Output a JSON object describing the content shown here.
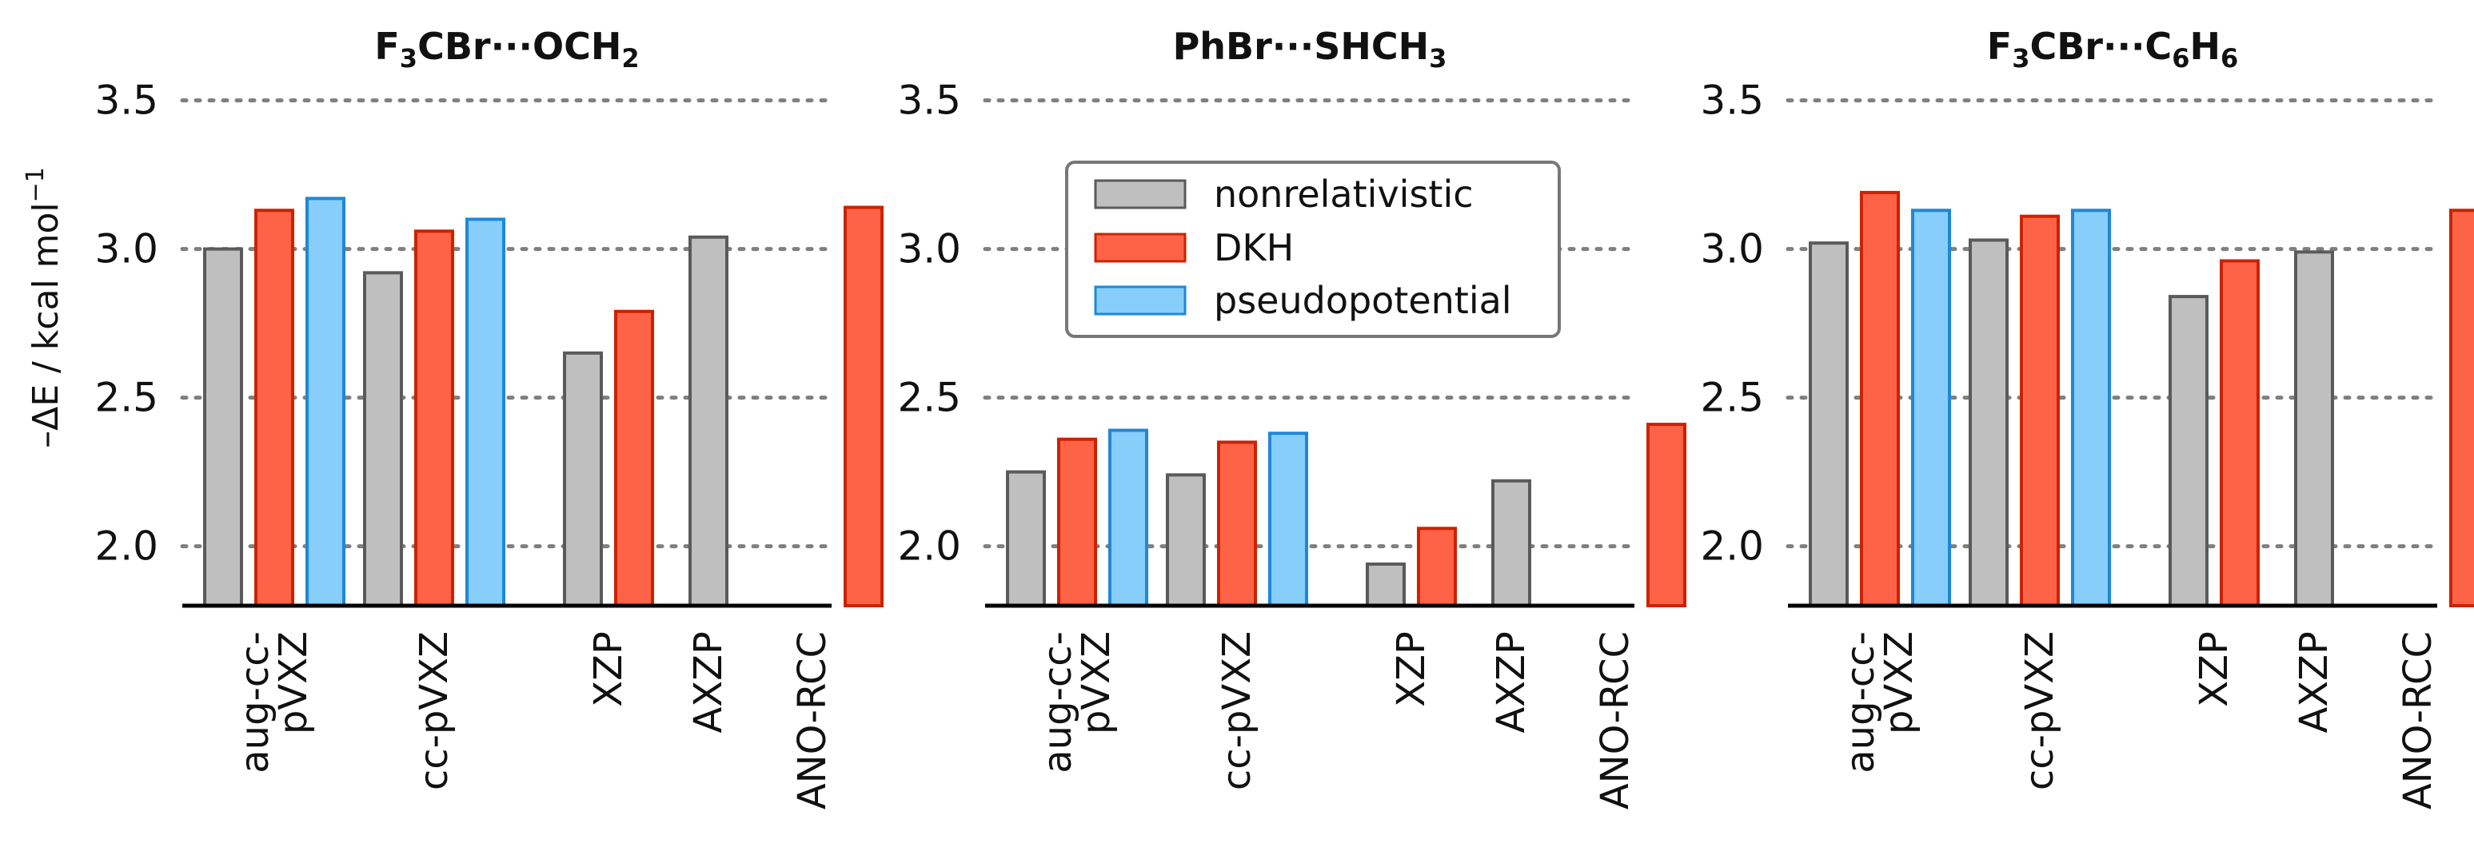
{
  "chart_data": {
    "type": "bar",
    "ylabel_main": "–ΔE / kcal mol",
    "ylabel_sup": "−1",
    "ylim": [
      1.8,
      3.5
    ],
    "yticks": [
      "2.0",
      "2.5",
      "3.0",
      "3.5"
    ],
    "ytick_values": [
      2.0,
      2.5,
      3.0,
      3.5
    ],
    "legend": {
      "position": "inside middle panel, upper area",
      "entries": [
        {
          "key": "nonrel",
          "label": "nonrelativistic"
        },
        {
          "key": "dkh",
          "label": "DKH"
        },
        {
          "key": "pp",
          "label": "pseudopotential"
        }
      ]
    },
    "colors": {
      "nonrel_fill": "#bfbfbf",
      "nonrel_edge": "#5a5a5a",
      "dkh_fill": "#ff6347",
      "dkh_edge": "#cc2200",
      "pp_fill": "#87cefa",
      "pp_edge": "#1e88d8",
      "grid": "#7f7f7f",
      "axis": "#000000"
    },
    "categories": [
      {
        "lines": [
          "aug-cc-",
          "pVXZ"
        ]
      },
      {
        "lines": [
          "cc-pVXZ"
        ]
      },
      {
        "lines": [
          "XZP"
        ]
      },
      {
        "lines": [
          "AXZP"
        ]
      },
      {
        "lines": [
          "ANO-RCC"
        ]
      }
    ],
    "panels": [
      {
        "title": {
          "parts": [
            {
              "t": "F",
              "sub": false
            },
            {
              "t": "3",
              "sub": true
            },
            {
              "t": "CBr···OCH",
              "sub": false
            },
            {
              "t": "2",
              "sub": true
            }
          ]
        },
        "series": [
          {
            "name": "nonrelativistic",
            "values": [
              3.0,
              2.92,
              2.65,
              3.04,
              null
            ]
          },
          {
            "name": "DKH",
            "values": [
              3.13,
              3.06,
              2.79,
              null,
              3.14
            ]
          },
          {
            "name": "pseudopotential",
            "values": [
              3.17,
              3.1,
              null,
              null,
              null
            ]
          }
        ]
      },
      {
        "title": {
          "parts": [
            {
              "t": "PhBr···SHCH",
              "sub": false
            },
            {
              "t": "3",
              "sub": true
            }
          ]
        },
        "series": [
          {
            "name": "nonrelativistic",
            "values": [
              2.25,
              2.24,
              1.94,
              2.22,
              null
            ]
          },
          {
            "name": "DKH",
            "values": [
              2.36,
              2.35,
              2.06,
              null,
              2.41
            ]
          },
          {
            "name": "pseudopotential",
            "values": [
              2.39,
              2.38,
              null,
              null,
              null
            ]
          }
        ]
      },
      {
        "title": {
          "parts": [
            {
              "t": "F",
              "sub": false
            },
            {
              "t": "3",
              "sub": true
            },
            {
              "t": "CBr···C",
              "sub": false
            },
            {
              "t": "6",
              "sub": true
            },
            {
              "t": "H",
              "sub": false
            },
            {
              "t": "6",
              "sub": true
            }
          ]
        },
        "series": [
          {
            "name": "nonrelativistic",
            "values": [
              3.02,
              3.03,
              2.84,
              2.99,
              null
            ]
          },
          {
            "name": "DKH",
            "values": [
              3.19,
              3.11,
              2.96,
              null,
              3.13
            ]
          },
          {
            "name": "pseudopotential",
            "values": [
              3.13,
              3.13,
              null,
              null,
              null
            ]
          }
        ]
      }
    ]
  }
}
